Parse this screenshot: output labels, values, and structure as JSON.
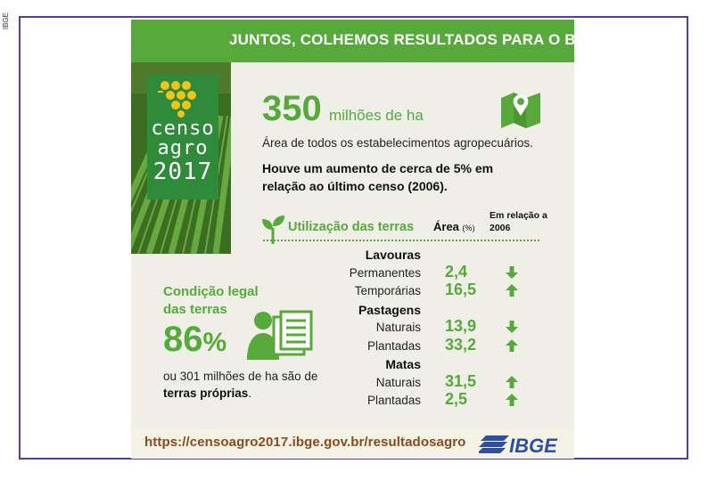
{
  "side_label": "IBGE",
  "banner": {
    "title": "JUNTOS, COLHEMOS RESULTADOS PARA O BRASIL"
  },
  "logo": {
    "line1": "censo",
    "line2": "agro",
    "line3": "2017"
  },
  "area": {
    "value": "350",
    "unit": "milhões de ha",
    "description": "Área de todos os estabelecimentos agropecuários.",
    "increase": "Houve um aumento de cerca de 5% em relação ao último censo (2006)."
  },
  "usage": {
    "title": "Utilização das terras",
    "col_area": "Área",
    "col_area_unit": "(%)",
    "col_relation": "Em relação a 2006",
    "rows": [
      {
        "label": "Lavouras",
        "type": "header"
      },
      {
        "label": "Permanentes",
        "value": "2,4",
        "trend": "down"
      },
      {
        "label": "Temporárias",
        "value": "16,5",
        "trend": "up"
      },
      {
        "label": "Pastagens",
        "type": "header"
      },
      {
        "label": "Naturais",
        "value": "13,9",
        "trend": "down"
      },
      {
        "label": "Plantadas",
        "value": "33,2",
        "trend": "up"
      },
      {
        "label": "Matas",
        "type": "header"
      },
      {
        "label": "Naturais",
        "value": "31,5",
        "trend": "up"
      },
      {
        "label": "Plantadas",
        "value": "2,5",
        "trend": "up"
      }
    ]
  },
  "legal": {
    "title": "Condição legal das terras",
    "percent": "86",
    "percent_symbol": "%",
    "desc_prefix": "ou 301 milhões de ha são de ",
    "desc_bold": "terras próprias",
    "desc_suffix": "."
  },
  "footer": {
    "url": "https://censoagro2017.ibge.gov.br/resultadosagro",
    "brand": "IBGE"
  },
  "colors": {
    "green": "#56a93a",
    "dark_green": "#2f8a3a",
    "frame": "#5b3f8c",
    "url": "#8a4a1f",
    "ibge_blue": "#2d4f9e"
  }
}
